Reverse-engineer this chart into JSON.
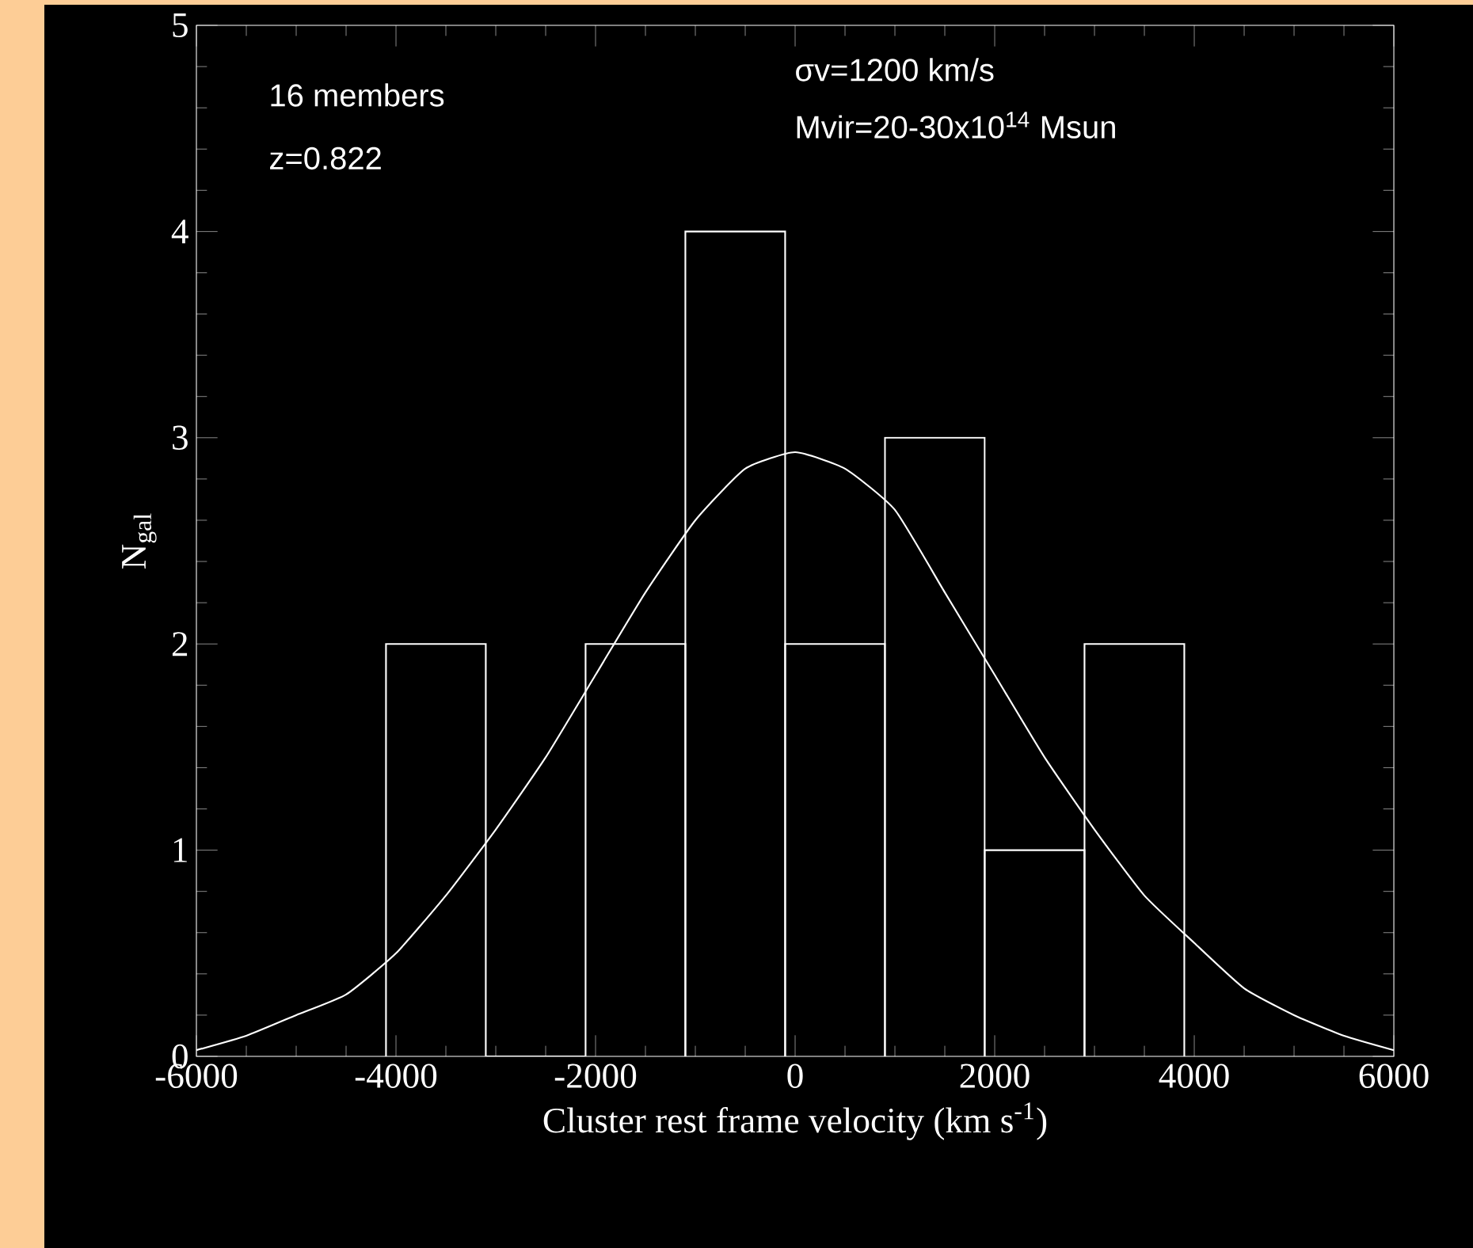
{
  "chart_data": {
    "type": "histogram",
    "xlabel": "Cluster rest frame velocity (km s$^{-1}$)",
    "ylabel": "N$_{gal}$",
    "annotations": [
      "16 members",
      "z=0.822",
      "σv=1200 km/s",
      "Mvir=20-30x10$^{14}$ Msun"
    ],
    "series": [
      {
        "color": "#ffffff",
        "bins": [
          -4100,
          -3100,
          -2100,
          -1100,
          -100,
          900,
          1900,
          2900,
          3900
        ],
        "values": [
          2,
          0,
          2,
          4,
          2,
          3,
          1,
          2
        ]
      },
      {
        "type": "line",
        "color": "#ffffff",
        "x": [
          -6000,
          -5500,
          -5000,
          -4500,
          -4000,
          -3500,
          -3000,
          -2500,
          -2000,
          -1500,
          -1000,
          -500,
          0,
          500,
          1000,
          1500,
          2000,
          2500,
          3000,
          3500,
          4000,
          4500,
          5000,
          5500,
          6000
        ],
        "values": [
          0.03,
          0.1,
          0.2,
          0.3,
          0.5,
          0.78,
          1.1,
          1.45,
          1.85,
          2.25,
          2.6,
          2.85,
          2.93,
          2.85,
          2.65,
          2.25,
          1.85,
          1.45,
          1.1,
          0.78,
          0.55,
          0.33,
          0.2,
          0.1,
          0.03
        ]
      }
    ],
    "xlim": [
      -6000,
      6000
    ],
    "ylim": [
      0,
      5
    ],
    "xticks": [
      -6000,
      -4000,
      -2000,
      0,
      2000,
      4000,
      6000
    ],
    "yticks": [
      0,
      1,
      2,
      3,
      4,
      5
    ]
  }
}
